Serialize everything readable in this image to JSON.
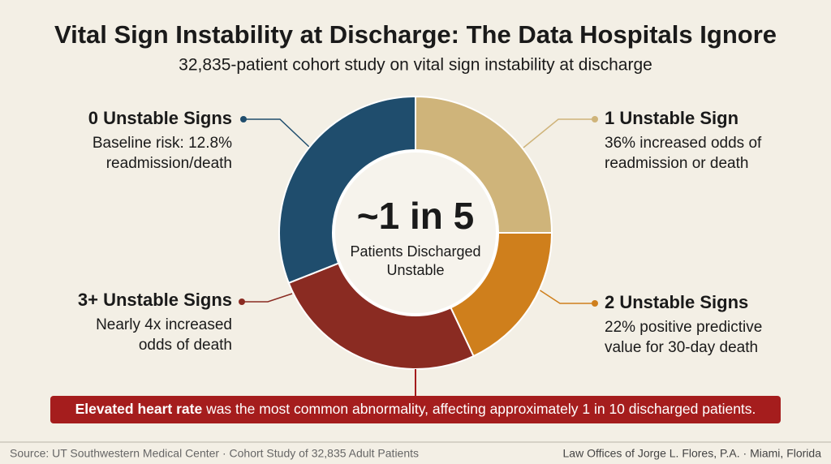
{
  "chart_data": {
    "type": "donut",
    "title": "Vital Sign Instability at Discharge: The Data Hospitals Ignore",
    "subtitle": "32,835-patient cohort study on vital sign instability at discharge",
    "categories": [
      "1 Unstable Sign",
      "2 Unstable Signs",
      "3+ Unstable Signs",
      "0 Unstable Signs"
    ],
    "descriptions": [
      [
        "36% increased odds of",
        "readmission or death"
      ],
      [
        "22% positive predictive",
        "value for 30-day death"
      ],
      [
        "Nearly 4x increased",
        "odds of death"
      ],
      [
        "Baseline risk: 12.8%",
        "readmission/death"
      ]
    ],
    "values": [
      25,
      18,
      26,
      31
    ],
    "colors": [
      "#cfb47a",
      "#cf7f1c",
      "#8a2b22",
      "#1f4d6d"
    ],
    "center": {
      "headline": "~1 in 5",
      "lines": [
        "Patients Discharged",
        "Unstable"
      ]
    },
    "banner": {
      "bold": "Elevated heart rate",
      "text": " was the most common abnormality, affecting approximately 1 in 10 discharged patients."
    },
    "footer": {
      "source": "Source: UT Southwestern Medical Center · Cohort Study of 32,835 Adult Patients",
      "credit": "Law Offices of Jorge L. Flores, P.A. · Miami, Florida"
    }
  }
}
